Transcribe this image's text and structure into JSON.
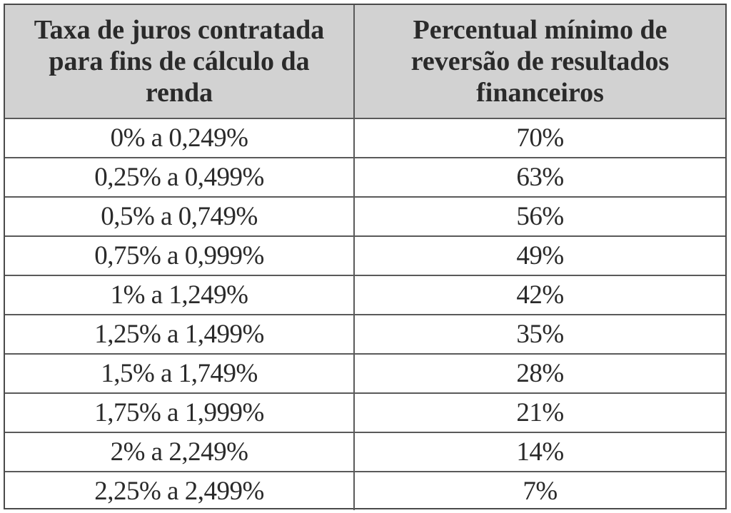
{
  "table": {
    "headers": [
      "Taxa de juros contratada para fins de cálculo da renda",
      "Percentual mínimo de reversão de resultados financeiros"
    ],
    "rows": [
      [
        "0% a 0,249%",
        "70%"
      ],
      [
        "0,25% a 0,499%",
        "63%"
      ],
      [
        "0,5% a 0,749%",
        "56%"
      ],
      [
        "0,75% a 0,999%",
        "49%"
      ],
      [
        "1% a 1,249%",
        "42%"
      ],
      [
        "1,25% a 1,499%",
        "35%"
      ],
      [
        "1,5% a 1,749%",
        "28%"
      ],
      [
        "1,75% a 1,999%",
        "21%"
      ],
      [
        "2% a 2,249%",
        "14%"
      ],
      [
        "2,25% a 2,499%",
        "7%"
      ]
    ]
  }
}
